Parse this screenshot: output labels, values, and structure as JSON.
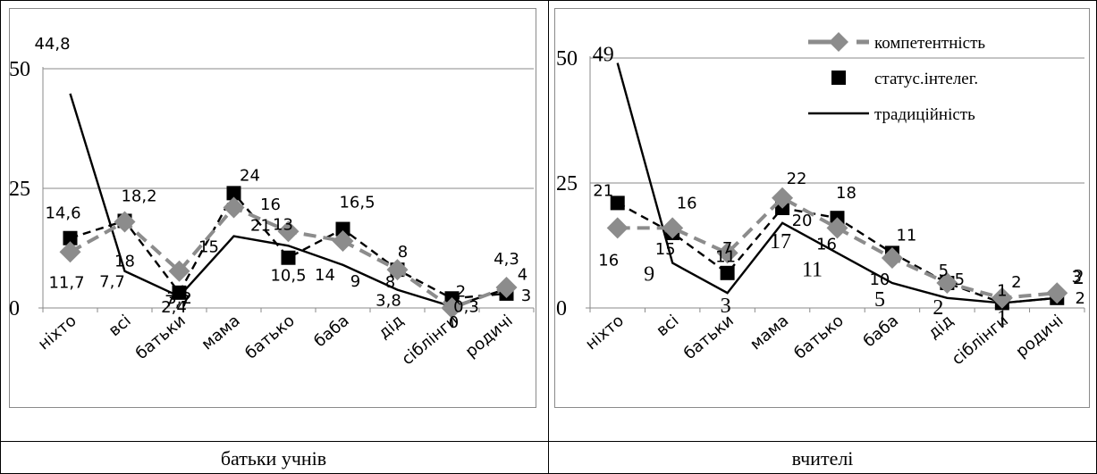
{
  "panels": [
    {
      "caption": "батьки учнів",
      "chart_data": {
        "type": "line",
        "categories": [
          "ніхто",
          "всі",
          "батьки",
          "мама",
          "батько",
          "баба",
          "дід",
          "сіблінги",
          "родичі"
        ],
        "ylim": [
          0,
          50
        ],
        "yticks": [
          0,
          25,
          50
        ],
        "grid": true,
        "series": [
          {
            "name": "компетентність",
            "style": "dashed-diamond-grey",
            "color": "#8c8c8c",
            "values": [
              11.7,
              18,
              7.7,
              21,
              16,
              14,
              8,
              0,
              4.3
            ],
            "labels": [
              "11,7",
              "18",
              "7,7",
              "21",
              "16",
              "14",
              "8",
              "0",
              "4,3"
            ]
          },
          {
            "name": "статус.інтелег.",
            "style": "dashed-square-black",
            "color": "#000000",
            "values": [
              14.6,
              18.2,
              3.2,
              24,
              10.5,
              16.5,
              8,
              2,
              3
            ],
            "labels": [
              "14,6",
              "18,2",
              "3,2",
              "24",
              "10,5",
              "16,5",
              "8",
              "2",
              "3"
            ]
          },
          {
            "name": "традиційність",
            "style": "solid-black",
            "color": "#000000",
            "values": [
              44.8,
              7.7,
              2.4,
              15,
              13,
              9,
              3.8,
              0.3,
              4
            ],
            "labels": [
              "44,8",
              "7,7",
              "2,4",
              "15",
              "13",
              "9",
              "3,8",
              "0,3",
              "4"
            ]
          }
        ]
      }
    },
    {
      "caption": "вчителі",
      "chart_data": {
        "type": "line",
        "categories": [
          "ніхто",
          "всі",
          "батьки",
          "мама",
          "батько",
          "баба",
          "дід",
          "сіблінги",
          "родичі"
        ],
        "ylim": [
          0,
          50
        ],
        "yticks": [
          0,
          25,
          50
        ],
        "grid": true,
        "legend": {
          "position": "top-right",
          "items": [
            "компетентність",
            "статус.інтелег.",
            "традиційність"
          ]
        },
        "series": [
          {
            "name": "компетентність",
            "style": "dashed-diamond-grey",
            "color": "#8c8c8c",
            "values": [
              16,
              16,
              11,
              22,
              16,
              10,
              5,
              2,
              3
            ],
            "labels": [
              "16",
              "16",
              "11",
              "22",
              "16",
              "10",
              "5",
              "2",
              "3"
            ]
          },
          {
            "name": "статус.інтелег.",
            "style": "dashed-square-black",
            "color": "#000000",
            "values": [
              21,
              15,
              7,
              20,
              18,
              11,
              5,
              1,
              2
            ],
            "labels": [
              "21",
              "15",
              "7",
              "20",
              "18",
              "11",
              "5",
              "1",
              "2"
            ]
          },
          {
            "name": "традиційність",
            "style": "solid-black",
            "color": "#000000",
            "values": [
              49,
              9,
              3,
              17,
              11,
              5,
              2,
              1,
              2
            ],
            "labels": [
              "49",
              "9",
              "3",
              "17",
              "11",
              "5",
              "2",
              "1",
              "2"
            ]
          }
        ]
      }
    }
  ]
}
